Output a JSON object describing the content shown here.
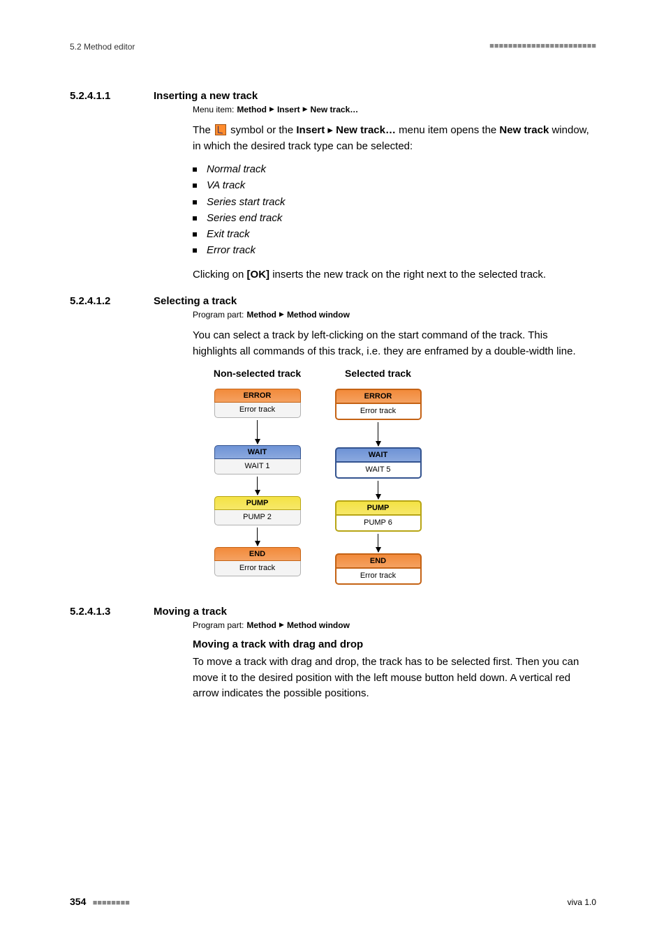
{
  "header": {
    "left": "5.2 Method editor",
    "right_marks": "■■■■■■■■■■■■■■■■■■■■■■■"
  },
  "sections": [
    {
      "num": "5.2.4.1.1",
      "title": "Inserting a new track",
      "menu_prefix": "Menu item:",
      "menu_path": [
        "Method",
        "Insert",
        "New track…"
      ],
      "para1_pre": "The ",
      "para1_mid1": " symbol or the ",
      "para1_b1": "Insert",
      "para1_mid2": " ▸ ",
      "para1_b2": "New track…",
      "para1_mid3": " menu item opens the ",
      "para1_b3": "New track",
      "para1_post": " window, in which the desired track type can be selected:",
      "list": [
        "Normal track",
        "VA track",
        "Series start track",
        "Series end track",
        "Exit track",
        "Error track"
      ],
      "para2_pre": "Clicking on ",
      "para2_b": "[OK]",
      "para2_post": " inserts the new track on the right next to the selected track."
    },
    {
      "num": "5.2.4.1.2",
      "title": "Selecting a track",
      "menu_prefix": "Program part:",
      "menu_path": [
        "Method",
        "Method window"
      ],
      "para": "You can select a track by left-clicking on the start command of the track. This highlights all commands of this track, i.e. they are enframed by a double-width line.",
      "diagram": {
        "col_titles": [
          "Non-selected track",
          "Selected track"
        ],
        "colors": {
          "error_head_bg": "#f28a3a",
          "error_head_brd": "#c46214",
          "error_body_bg": "#f4f4f4",
          "error_body_brd": "#b0b0b0",
          "wait_head_bg": "#6e93d6",
          "wait_head_brd": "#33538f",
          "wait_body_bg": "#f4f4f4",
          "wait_body_brd": "#b0b0b0",
          "pump_head_bg": "#f4e244",
          "pump_head_brd": "#b7a514",
          "pump_body_bg": "#f4f4f4",
          "pump_body_brd": "#b0b0b0",
          "end_head_bg": "#f28a3a",
          "end_head_brd": "#c46214",
          "end_body_bg": "#f4f4f4",
          "end_body_brd": "#b0b0b0",
          "sel_error_body_bg": "#ffffff",
          "sel_wait_body_bg": "#ffffff",
          "sel_pump_body_bg": "#ffffff",
          "sel_end_body_bg": "#ffffff"
        },
        "arrow_h_short": 26,
        "arrow_h_long": 34,
        "columns": [
          {
            "thick": false,
            "nodes": [
              {
                "head": "ERROR",
                "body": "Error track",
                "kind": "error"
              },
              {
                "head": "WAIT",
                "body": "WAIT 1",
                "kind": "wait"
              },
              {
                "head": "PUMP",
                "body": "PUMP 2",
                "kind": "pump"
              },
              {
                "head": "END",
                "body": "Error track",
                "kind": "end"
              }
            ]
          },
          {
            "thick": true,
            "nodes": [
              {
                "head": "ERROR",
                "body": "Error track",
                "kind": "error"
              },
              {
                "head": "WAIT",
                "body": "WAIT 5",
                "kind": "wait"
              },
              {
                "head": "PUMP",
                "body": "PUMP 6",
                "kind": "pump"
              },
              {
                "head": "END",
                "body": "Error track",
                "kind": "end"
              }
            ]
          }
        ]
      }
    },
    {
      "num": "5.2.4.1.3",
      "title": "Moving a track",
      "menu_prefix": "Program part:",
      "menu_path": [
        "Method",
        "Method window"
      ],
      "sub_h": "Moving a track with drag and drop",
      "para": "To move a track with drag and drop, the track has to be selected first. Then you can move it to the desired position with the left mouse button held down. A vertical red arrow indicates the possible positions."
    }
  ],
  "footer": {
    "page": "354",
    "left_marks": "■■■■■■■■",
    "right": "viva 1.0"
  }
}
